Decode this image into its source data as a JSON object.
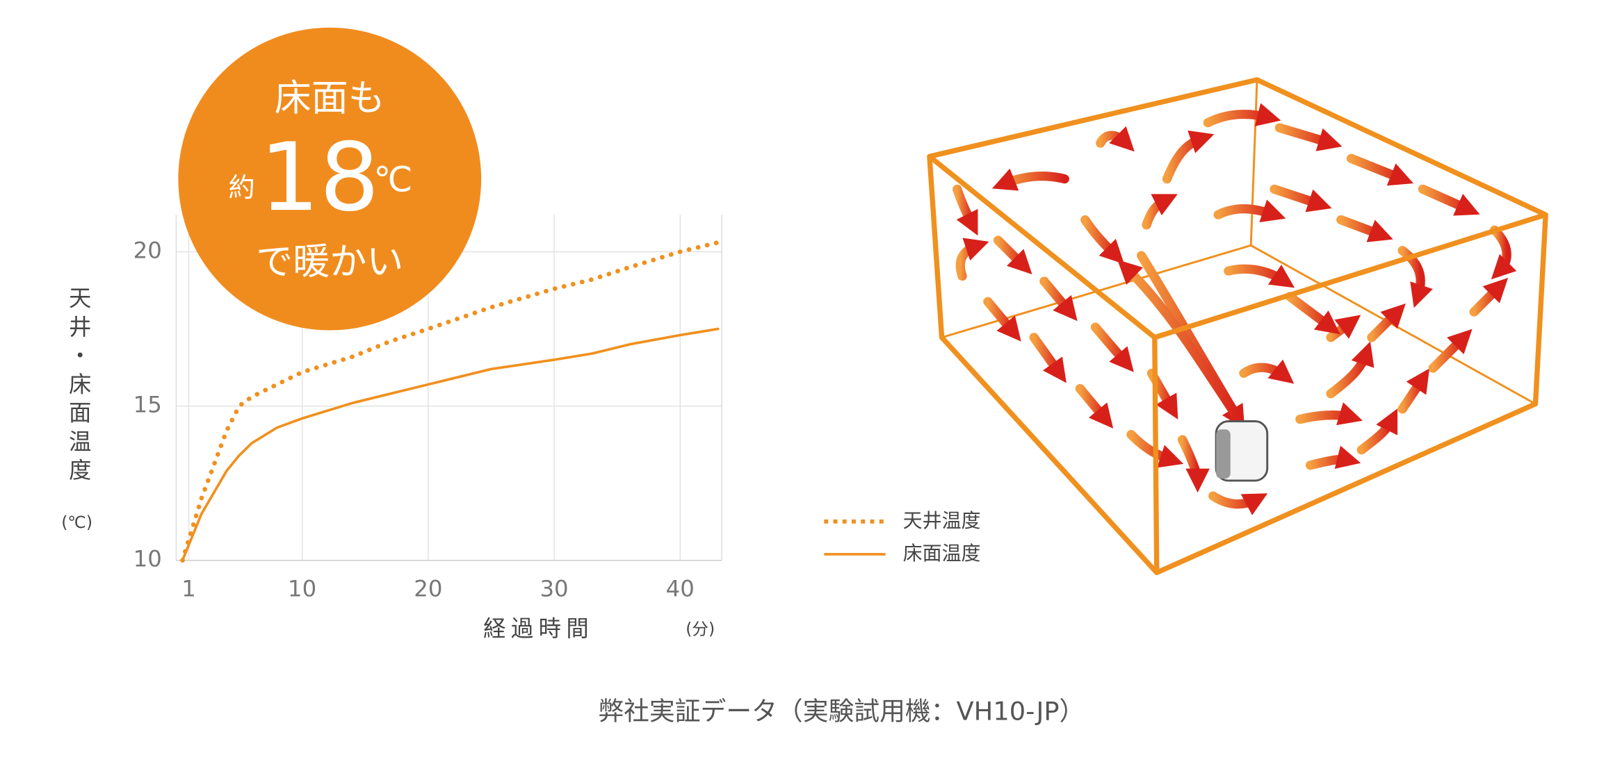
{
  "chart_data": {
    "type": "line",
    "y_label": "天井・床面温度",
    "y_unit": "(℃)",
    "x_label": "経過時間",
    "x_unit": "(分)",
    "x": [
      0.5,
      2,
      4,
      5,
      6,
      8,
      10,
      14,
      17,
      20,
      25,
      30,
      33,
      36,
      40,
      43
    ],
    "series": [
      {
        "name": "天井温度",
        "color": "#f0901e",
        "style": "dotted",
        "values": [
          10,
          12,
          14.2,
          15,
          15.3,
          15.7,
          16.1,
          16.6,
          17.1,
          17.5,
          18.2,
          18.8,
          19.1,
          19.5,
          20,
          20.3
        ]
      },
      {
        "name": "床面温度",
        "color": "#f0901e",
        "style": "solid",
        "values": [
          10,
          11.5,
          12.9,
          13.4,
          13.8,
          14.3,
          14.6,
          15.1,
          15.4,
          15.7,
          16.2,
          16.5,
          16.7,
          17.0,
          17.3,
          17.5
        ]
      }
    ],
    "xlim": [
      0,
      43.3
    ],
    "ylim": [
      10,
      21.2
    ],
    "xticks": [
      1,
      10,
      20,
      30,
      40
    ],
    "yticks": [
      10,
      15,
      20
    ],
    "grid": true,
    "badge": {
      "line1": "床面も",
      "prefix": "約",
      "number": "18",
      "unit": "℃",
      "line3": "で暖かい"
    },
    "caption": "弊社実証データ（実験試用機：VH10-JP）"
  }
}
